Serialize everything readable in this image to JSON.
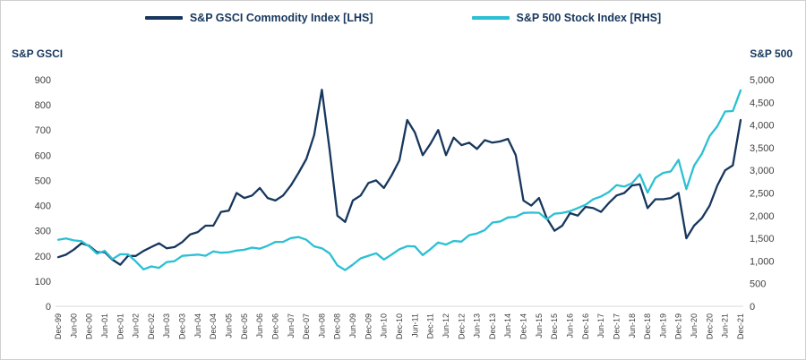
{
  "chart_data": {
    "type": "line",
    "left_axis": {
      "title": "S&P GSCI",
      "min": 0,
      "max": 900,
      "step": 100,
      "comma": false
    },
    "right_axis": {
      "title": "S&P 500",
      "min": 0,
      "max": 5000,
      "step": 500,
      "comma": true
    },
    "x_tick_every": 2,
    "grid": false,
    "legend_position": "top",
    "x": [
      "Dec-99",
      "Mar-00",
      "Jun-00",
      "Sep-00",
      "Dec-00",
      "Mar-01",
      "Jun-01",
      "Sep-01",
      "Dec-01",
      "Mar-02",
      "Jun-02",
      "Sep-02",
      "Dec-02",
      "Mar-03",
      "Jun-03",
      "Sep-03",
      "Dec-03",
      "Mar-04",
      "Jun-04",
      "Sep-04",
      "Dec-04",
      "Mar-05",
      "Jun-05",
      "Sep-05",
      "Dec-05",
      "Mar-06",
      "Jun-06",
      "Sep-06",
      "Dec-06",
      "Mar-07",
      "Jun-07",
      "Sep-07",
      "Dec-07",
      "Mar-08",
      "Jun-08",
      "Sep-08",
      "Dec-08",
      "Mar-09",
      "Jun-09",
      "Sep-09",
      "Dec-09",
      "Mar-10",
      "Jun-10",
      "Sep-10",
      "Dec-10",
      "Mar-11",
      "Jun-11",
      "Sep-11",
      "Dec-11",
      "Mar-12",
      "Jun-12",
      "Sep-12",
      "Dec-12",
      "Mar-13",
      "Jun-13",
      "Sep-13",
      "Dec-13",
      "Mar-14",
      "Jun-14",
      "Sep-14",
      "Dec-14",
      "Mar-15",
      "Jun-15",
      "Sep-15",
      "Dec-15",
      "Mar-16",
      "Jun-16",
      "Sep-16",
      "Dec-16",
      "Mar-17",
      "Jun-17",
      "Sep-17",
      "Dec-17",
      "Mar-18",
      "Jun-18",
      "Sep-18",
      "Dec-18",
      "Mar-19",
      "Jun-19",
      "Sep-19",
      "Dec-19",
      "Mar-20",
      "Jun-20",
      "Sep-20",
      "Dec-20",
      "Mar-21",
      "Jun-21",
      "Sep-21",
      "Dec-21"
    ],
    "series": [
      {
        "name": "S&P GSCI Commodity Index [LHS]",
        "axis": "left",
        "color": "#17375E",
        "values": [
          195,
          205,
          225,
          250,
          240,
          215,
          215,
          185,
          165,
          200,
          200,
          220,
          235,
          250,
          230,
          235,
          255,
          285,
          295,
          320,
          320,
          375,
          380,
          450,
          430,
          440,
          470,
          430,
          420,
          440,
          480,
          530,
          585,
          680,
          860,
          620,
          360,
          335,
          420,
          440,
          490,
          500,
          470,
          520,
          580,
          740,
          690,
          600,
          645,
          700,
          600,
          670,
          640,
          650,
          625,
          660,
          650,
          655,
          665,
          600,
          420,
          400,
          430,
          350,
          300,
          320,
          370,
          360,
          395,
          390,
          375,
          410,
          440,
          450,
          480,
          485,
          390,
          425,
          425,
          430,
          450,
          270,
          320,
          350,
          400,
          480,
          540,
          560,
          740
        ]
      },
      {
        "name": "S&P 500 Stock Index [RHS]",
        "axis": "right",
        "color": "#2BC0D4",
        "values": [
          1469,
          1499,
          1455,
          1436,
          1320,
          1160,
          1224,
          1041,
          1148,
          1147,
          990,
          815,
          880,
          848,
          975,
          996,
          1112,
          1126,
          1141,
          1115,
          1212,
          1181,
          1191,
          1229,
          1248,
          1295,
          1270,
          1336,
          1418,
          1421,
          1503,
          1527,
          1468,
          1323,
          1280,
          1166,
          903,
          798,
          919,
          1057,
          1115,
          1169,
          1031,
          1141,
          1258,
          1326,
          1321,
          1131,
          1258,
          1408,
          1362,
          1441,
          1426,
          1569,
          1606,
          1682,
          1848,
          1872,
          1960,
          1972,
          2059,
          2068,
          2063,
          1920,
          2044,
          2060,
          2099,
          2168,
          2239,
          2363,
          2423,
          2519,
          2674,
          2641,
          2718,
          2914,
          2507,
          2834,
          2942,
          2977,
          3231,
          2585,
          3100,
          3363,
          3756,
          3973,
          4298,
          4308,
          4766
        ]
      }
    ]
  }
}
